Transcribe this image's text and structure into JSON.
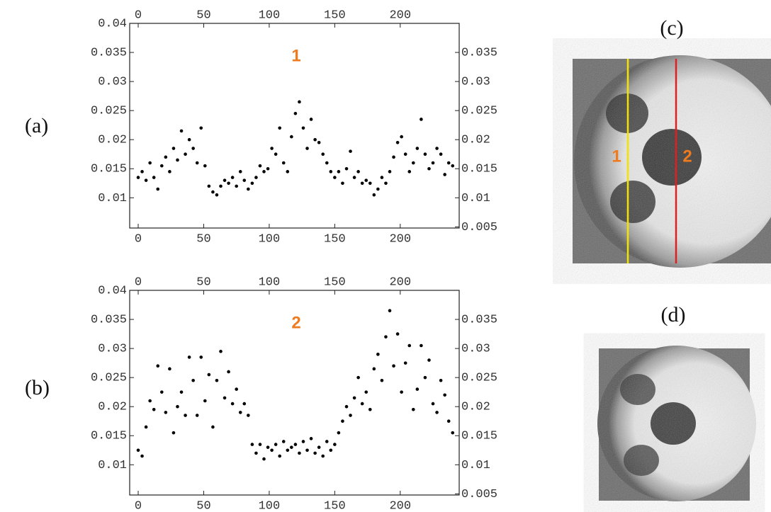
{
  "chart_data": [
    {
      "type": "scatter",
      "annotation": "1",
      "annotation_color": "#f07a1e",
      "color": "#000000",
      "x": [
        0,
        3,
        6,
        9,
        12,
        15,
        18,
        21,
        24,
        27,
        30,
        33,
        36,
        39,
        42,
        45,
        48,
        51,
        54,
        57,
        60,
        63,
        66,
        69,
        72,
        75,
        78,
        81,
        84,
        87,
        90,
        93,
        96,
        99,
        102,
        105,
        108,
        111,
        114,
        117,
        120,
        123,
        126,
        129,
        132,
        135,
        138,
        141,
        144,
        147,
        150,
        153,
        156,
        159,
        162,
        165,
        168,
        171,
        174,
        177,
        180,
        183,
        186,
        189,
        192,
        195,
        198,
        201,
        204,
        207,
        210,
        213,
        216,
        219,
        222,
        225,
        228,
        231,
        234,
        237,
        240
      ],
      "values": [
        0.0135,
        0.0145,
        0.013,
        0.016,
        0.0135,
        0.0115,
        0.0155,
        0.017,
        0.0145,
        0.0185,
        0.0165,
        0.0215,
        0.0175,
        0.02,
        0.0185,
        0.016,
        0.022,
        0.0155,
        0.012,
        0.011,
        0.0105,
        0.012,
        0.013,
        0.0125,
        0.0135,
        0.012,
        0.0145,
        0.013,
        0.0115,
        0.0125,
        0.0135,
        0.0155,
        0.0145,
        0.015,
        0.0185,
        0.0175,
        0.022,
        0.016,
        0.0145,
        0.0205,
        0.0245,
        0.0265,
        0.022,
        0.0185,
        0.0235,
        0.02,
        0.0195,
        0.0175,
        0.016,
        0.0145,
        0.0135,
        0.0145,
        0.0125,
        0.015,
        0.018,
        0.0135,
        0.0145,
        0.0125,
        0.013,
        0.0125,
        0.0105,
        0.0115,
        0.0135,
        0.0125,
        0.0145,
        0.017,
        0.0195,
        0.0205,
        0.0175,
        0.0145,
        0.016,
        0.0185,
        0.0235,
        0.0175,
        0.015,
        0.016,
        0.0185,
        0.0175,
        0.014,
        0.016,
        0.0155
      ],
      "xlim": [
        -6.5,
        245
      ],
      "xticks": [
        0,
        50,
        100,
        150,
        200
      ],
      "ylim": [
        0.0048,
        0.04
      ],
      "yticks": [
        0.01,
        0.015,
        0.02,
        0.025,
        0.03,
        0.035,
        0.04
      ],
      "y2lim": [
        0.0048,
        0.04
      ],
      "y2ticks": [
        0.005,
        0.01,
        0.015,
        0.02,
        0.025,
        0.03,
        0.035
      ]
    },
    {
      "type": "scatter",
      "annotation": "2",
      "annotation_color": "#f07a1e",
      "color": "#000000",
      "x": [
        0,
        3,
        6,
        9,
        12,
        15,
        18,
        21,
        24,
        27,
        30,
        33,
        36,
        39,
        42,
        45,
        48,
        51,
        54,
        57,
        60,
        63,
        66,
        69,
        72,
        75,
        78,
        81,
        84,
        87,
        90,
        93,
        96,
        99,
        102,
        105,
        108,
        111,
        114,
        117,
        120,
        123,
        126,
        129,
        132,
        135,
        138,
        141,
        144,
        147,
        150,
        153,
        156,
        159,
        162,
        165,
        168,
        171,
        174,
        177,
        180,
        183,
        186,
        189,
        192,
        195,
        198,
        201,
        204,
        207,
        210,
        213,
        216,
        219,
        222,
        225,
        228,
        231,
        234,
        237,
        240
      ],
      "values": [
        0.0125,
        0.0115,
        0.0165,
        0.021,
        0.0195,
        0.027,
        0.0225,
        0.019,
        0.0265,
        0.0155,
        0.02,
        0.0225,
        0.0185,
        0.0285,
        0.0245,
        0.0185,
        0.0285,
        0.021,
        0.0255,
        0.0165,
        0.0245,
        0.0295,
        0.0215,
        0.026,
        0.0205,
        0.023,
        0.019,
        0.0205,
        0.0185,
        0.0135,
        0.012,
        0.0135,
        0.011,
        0.013,
        0.0125,
        0.0135,
        0.0115,
        0.014,
        0.0125,
        0.013,
        0.0135,
        0.012,
        0.014,
        0.0125,
        0.0145,
        0.012,
        0.013,
        0.0115,
        0.014,
        0.0125,
        0.0135,
        0.0155,
        0.0175,
        0.02,
        0.0185,
        0.0215,
        0.025,
        0.0205,
        0.0225,
        0.0195,
        0.0265,
        0.029,
        0.0245,
        0.032,
        0.0365,
        0.027,
        0.0325,
        0.0225,
        0.0275,
        0.0305,
        0.0195,
        0.023,
        0.0305,
        0.025,
        0.028,
        0.0205,
        0.019,
        0.0245,
        0.022,
        0.0175,
        0.0155
      ],
      "xlim": [
        -6.5,
        245
      ],
      "xticks": [
        0,
        50,
        100,
        150,
        200
      ],
      "ylim": [
        0.0048,
        0.04
      ],
      "yticks": [
        0.01,
        0.015,
        0.02,
        0.025,
        0.03,
        0.035,
        0.04
      ],
      "y2lim": [
        0.0048,
        0.04
      ],
      "y2ticks": [
        0.005,
        0.01,
        0.015,
        0.02,
        0.025,
        0.03,
        0.035
      ]
    }
  ],
  "panel_labels": [
    "(a)",
    "(b)",
    "(c)",
    "(d)"
  ],
  "image_c": {
    "line_labels": [
      "1",
      "2"
    ]
  }
}
